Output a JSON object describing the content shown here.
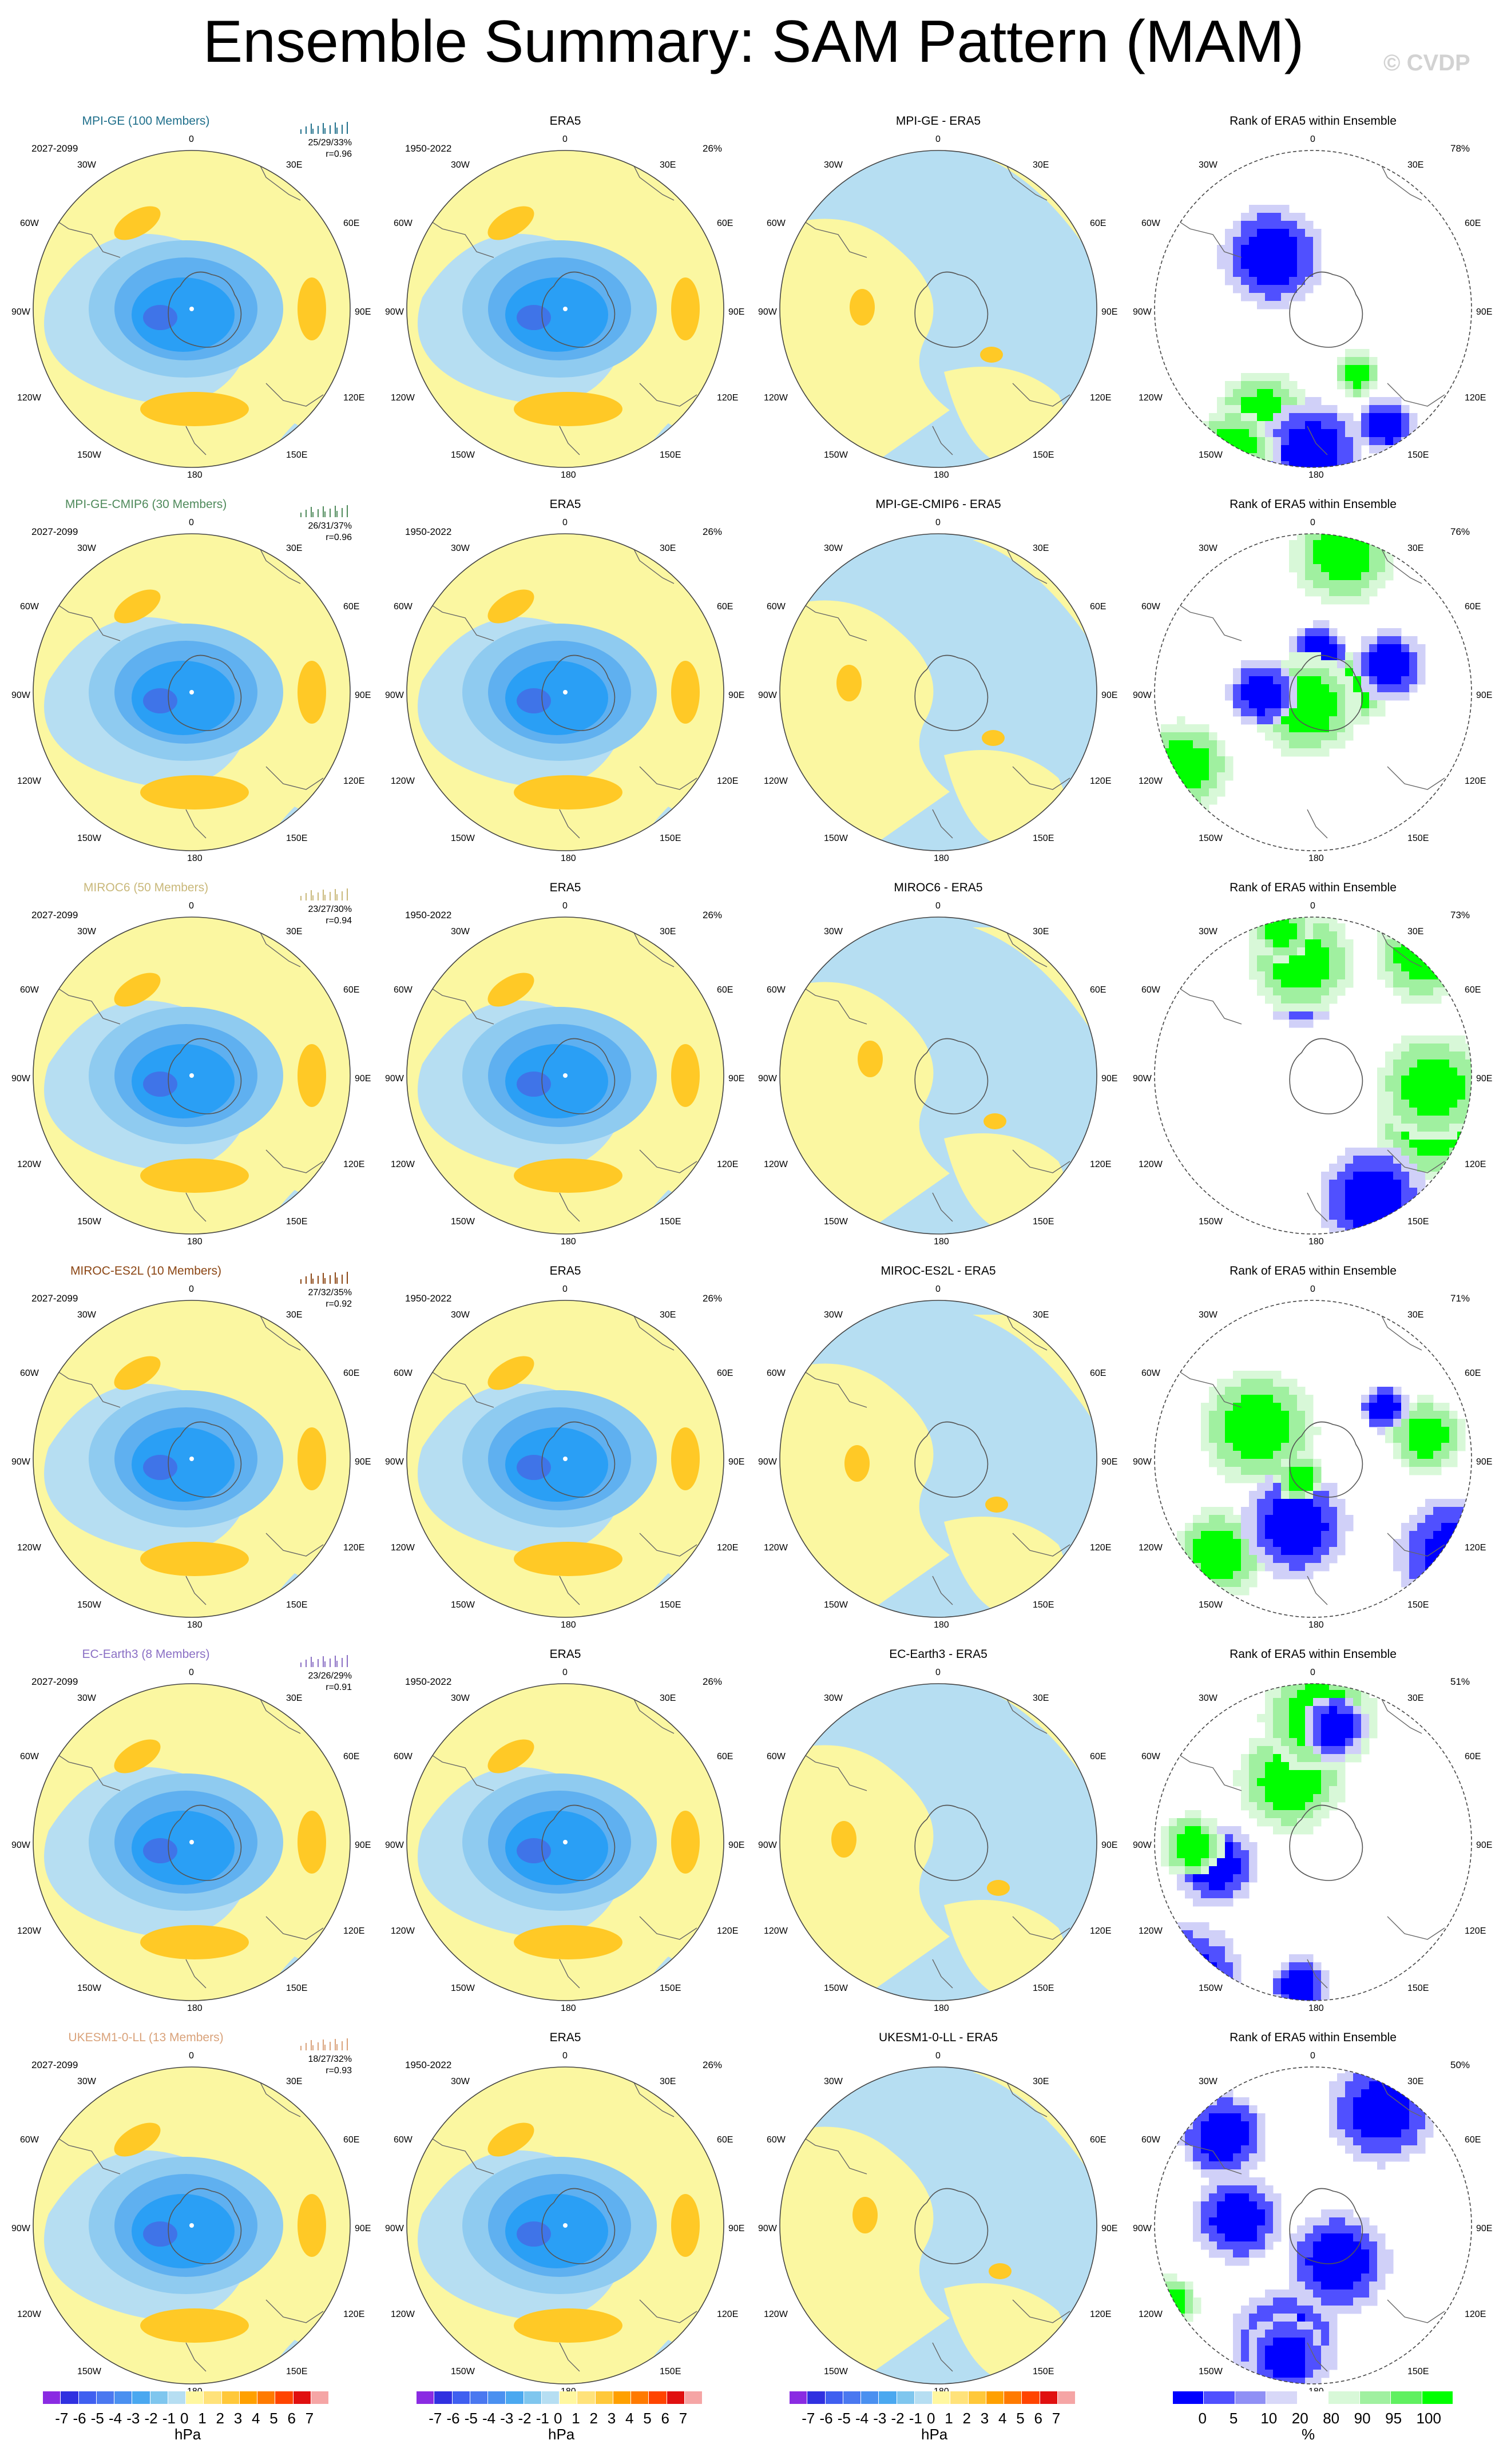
{
  "title": "Ensemble Summary: SAM Pattern (MAM)",
  "watermark": "© CVDP",
  "lon_labels": [
    "0",
    "30E",
    "60E",
    "90E",
    "120E",
    "150E",
    "180",
    "150W",
    "120W",
    "90W",
    "60W",
    "30W"
  ],
  "rows": [
    {
      "ens_title": "MPI-GE (100 Members)",
      "ens_color": "#1f6f8b",
      "stats": "25/29/33%",
      "r": "r=0.96",
      "diff_title": "MPI-GE - ERA5",
      "rank_pct": "78%"
    },
    {
      "ens_title": "MPI-GE-CMIP6 (30 Members)",
      "ens_color": "#4f8a5b",
      "stats": "26/31/37%",
      "r": "r=0.96",
      "diff_title": "MPI-GE-CMIP6 - ERA5",
      "rank_pct": "76%"
    },
    {
      "ens_title": "MIROC6 (50 Members)",
      "ens_color": "#c9b87a",
      "stats": "23/27/30%",
      "r": "r=0.94",
      "diff_title": "MIROC6 - ERA5",
      "rank_pct": "73%"
    },
    {
      "ens_title": "MIROC-ES2L (10 Members)",
      "ens_color": "#8b4513",
      "stats": "27/32/35%",
      "r": "r=0.92",
      "diff_title": "MIROC-ES2L - ERA5",
      "rank_pct": "71%"
    },
    {
      "ens_title": "EC-Earth3 (8 Members)",
      "ens_color": "#8a6fc4",
      "stats": "23/26/29%",
      "r": "r=0.91",
      "diff_title": "EC-Earth3 - ERA5",
      "rank_pct": "51%"
    },
    {
      "ens_title": "UKESM1-0-LL (13 Members)",
      "ens_color": "#d9a27a",
      "stats": "18/27/32%",
      "r": "r=0.93",
      "diff_title": "UKESM1-0-LL - ERA5",
      "rank_pct": "50%"
    }
  ],
  "ens_period": "2027-2099",
  "obs_title": "ERA5",
  "obs_period": "1950-2022",
  "obs_pct": "26%",
  "rank_title": "Rank of ERA5 within Ensemble",
  "colorbar_hpa": {
    "ticks": [
      "-7",
      "-6",
      "-5",
      "-4",
      "-3",
      "-2",
      "-1",
      "0",
      "1",
      "2",
      "3",
      "4",
      "5",
      "6",
      "7"
    ],
    "unit": "hPa",
    "colors": [
      "#8a2be2",
      "#3030e0",
      "#3f5ff0",
      "#4a78f0",
      "#4a90f0",
      "#4aa8f0",
      "#7fc6ee",
      "#b6def2",
      "#fff7a0",
      "#ffe27a",
      "#ffc83a",
      "#ffa000",
      "#ff7a00",
      "#ff4400",
      "#e01010",
      "#f5a5a5"
    ]
  },
  "colorbar_rank": {
    "ticks": [
      "0",
      "5",
      "10",
      "20",
      "80",
      "90",
      "95",
      "100"
    ],
    "unit": "%",
    "colors": [
      "#0000ff",
      "#5050ff",
      "#9090f5",
      "#d8d8f8",
      "#ffffff",
      "#d8f8d8",
      "#a0f0a0",
      "#60f060",
      "#00ff00"
    ]
  }
}
